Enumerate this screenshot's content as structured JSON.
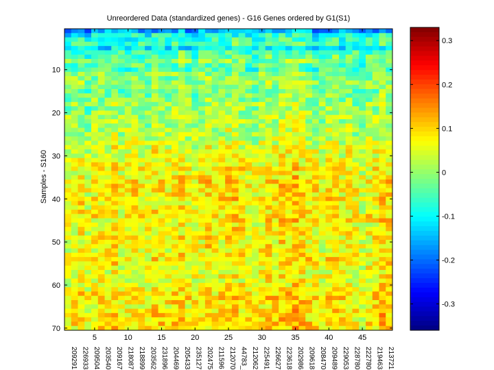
{
  "chart_data": [
    {
      "type": "heatmap",
      "title": "Unreordered Data (standardized genes) - G16 Genes ordered by G1(S1)",
      "ylabel": "Samples - S160",
      "xlabel": "",
      "n_cols": 49,
      "n_rows": 70,
      "x_ticks": [
        5,
        10,
        15,
        20,
        25,
        30,
        35,
        40,
        45
      ],
      "y_ticks": [
        10,
        20,
        30,
        40,
        50,
        60,
        70
      ],
      "x_gene_labels": [
        "209291",
        "226933",
        "209504",
        "203540",
        "209167",
        "218087",
        "218899",
        "203562",
        "231896",
        "204469",
        "205433",
        "235127",
        "202475",
        "211596",
        "212070",
        "44783_s",
        "212062",
        "225491",
        "226627",
        "223618",
        "202986",
        "209618",
        "208470",
        "209489",
        "229053",
        "228780",
        "222780",
        "219463",
        "213721"
      ],
      "x_gene_labels_note_visible": true,
      "row_profile": [
        -0.17,
        -0.1,
        -0.08,
        -0.06,
        -0.12,
        -0.05,
        -0.04,
        -0.02,
        -0.05,
        -0.06,
        -0.02,
        -0.01,
        0.0,
        -0.01,
        -0.03,
        -0.02,
        -0.01,
        0.0,
        -0.01,
        0.0,
        0.01,
        0.0,
        0.01,
        0.02,
        0.01,
        0.02,
        0.03,
        0.04,
        0.05,
        0.04,
        0.05,
        0.06,
        0.07,
        0.06,
        0.07,
        0.08,
        0.07,
        0.08,
        0.07,
        0.08,
        0.07,
        0.06,
        0.07,
        0.08,
        0.07,
        0.06,
        0.07,
        0.06,
        0.07,
        0.06,
        0.07,
        0.06,
        0.07,
        0.08,
        0.07,
        0.06,
        0.05,
        0.06,
        0.05,
        0.06,
        0.07,
        0.08,
        0.09,
        0.08,
        0.07,
        0.08,
        0.09,
        0.08,
        0.09,
        0.08
      ],
      "col_profile": [
        -0.01,
        0.0,
        0.01,
        -0.02,
        0.0,
        0.01,
        0.0,
        0.02,
        -0.01,
        0.0,
        0.01,
        0.0,
        -0.01,
        0.02,
        0.01,
        0.0,
        0.01,
        0.02,
        0.0,
        -0.01,
        0.01,
        0.02,
        0.0,
        0.01,
        0.02,
        0.03,
        0.01,
        0.0,
        -0.01,
        0.01,
        0.02,
        0.01,
        0.03,
        0.02,
        0.04,
        0.02,
        0.01,
        0.0,
        -0.01,
        0.01,
        0.02,
        0.0,
        0.01,
        -0.01,
        -0.02,
        0.0,
        0.01,
        0.03,
        0.02
      ],
      "noise_amplitude": 0.06,
      "colorbar": {
        "colormap": "jet",
        "min": -0.36,
        "max": 0.33,
        "ticks": [
          -0.3,
          -0.2,
          -0.1,
          0,
          0.1,
          0.2,
          0.3
        ],
        "tick_labels": [
          "-0.3",
          "-0.2",
          "-0.1",
          "0",
          "0.1",
          "0.2",
          "0.3"
        ]
      }
    }
  ]
}
